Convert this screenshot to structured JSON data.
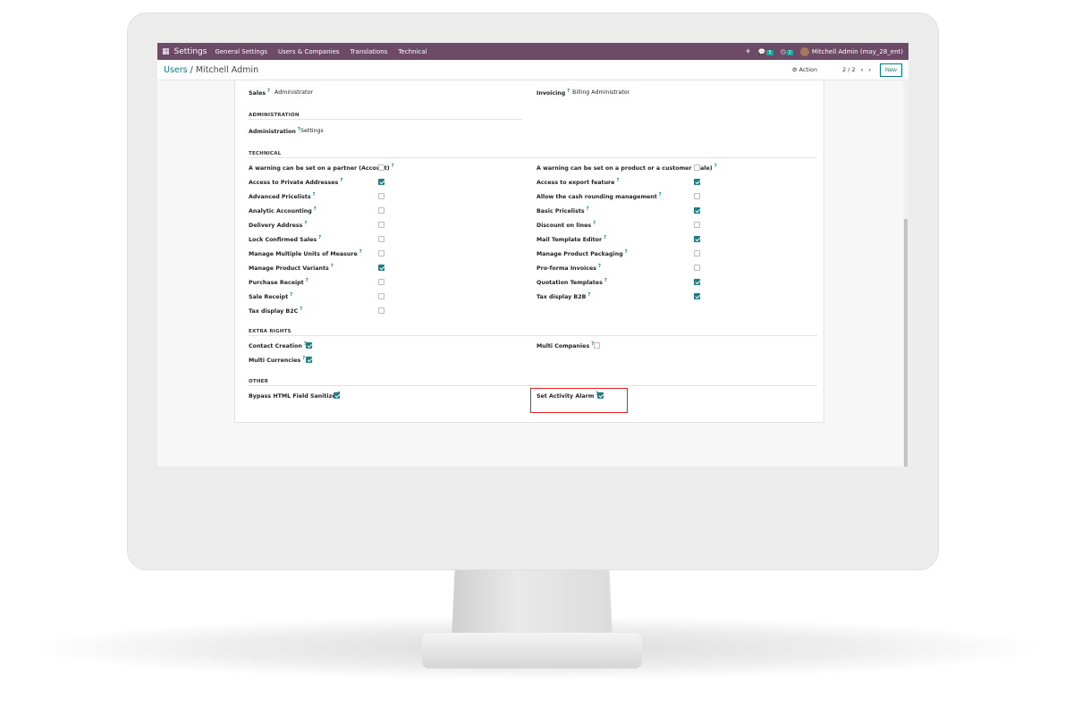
{
  "navbar": {
    "app": "Settings",
    "menu": [
      "General Settings",
      "Users & Companies",
      "Translations",
      "Technical"
    ],
    "messages_count": "5",
    "activities_count": "2",
    "user": "Mitchell Admin (may_28_ent)",
    "color": "#6d4a66"
  },
  "breadcrumb": {
    "parent": "Users",
    "separator": " / ",
    "current": "Mitchell Admin"
  },
  "controlpanel": {
    "action": "⚙ Action",
    "pager": "2 / 2",
    "new": "New"
  },
  "top": {
    "sales_label": "Sales",
    "sales_value": "Administrator",
    "invoicing_label": "Invoicing",
    "invoicing_value": "Billing Administrator"
  },
  "administration": {
    "title": "ADMINISTRATION",
    "label": "Administration",
    "value": "Settings"
  },
  "technical": {
    "title": "TECHNICAL",
    "left": [
      {
        "label": "A warning can be set on a partner (Account)",
        "checked": false
      },
      {
        "label": "Access to Private Addresses",
        "checked": true
      },
      {
        "label": "Advanced Pricelists",
        "checked": false
      },
      {
        "label": "Analytic Accounting",
        "checked": false
      },
      {
        "label": "Delivery Address",
        "checked": false
      },
      {
        "label": "Lock Confirmed Sales",
        "checked": false
      },
      {
        "label": "Manage Multiple Units of Measure",
        "checked": false
      },
      {
        "label": "Manage Product Variants",
        "checked": true
      },
      {
        "label": "Purchase Receipt",
        "checked": false
      },
      {
        "label": "Sale Receipt",
        "checked": false
      },
      {
        "label": "Tax display B2C",
        "checked": false
      }
    ],
    "right": [
      {
        "label": "A warning can be set on a product or a customer (Sale)",
        "checked": false
      },
      {
        "label": "Access to export feature",
        "checked": true
      },
      {
        "label": "Allow the cash rounding management",
        "checked": false
      },
      {
        "label": "Basic Pricelists",
        "checked": true
      },
      {
        "label": "Discount on lines",
        "checked": false
      },
      {
        "label": "Mail Template Editor",
        "checked": true
      },
      {
        "label": "Manage Product Packaging",
        "checked": false
      },
      {
        "label": "Pro-forma Invoices",
        "checked": false
      },
      {
        "label": "Quotation Templates",
        "checked": true
      },
      {
        "label": "Tax display B2B",
        "checked": true
      }
    ]
  },
  "extra": {
    "title": "EXTRA RIGHTS",
    "left": [
      {
        "label": "Contact Creation",
        "checked": true
      },
      {
        "label": "Multi Currencies",
        "checked": true
      }
    ],
    "right": [
      {
        "label": "Multi Companies",
        "checked": false
      }
    ]
  },
  "other": {
    "title": "OTHER",
    "left": [
      {
        "label": "Bypass HTML Field Sanitize",
        "checked": true
      }
    ],
    "right": [
      {
        "label": "Set Activity Alarm",
        "checked": true
      }
    ]
  }
}
